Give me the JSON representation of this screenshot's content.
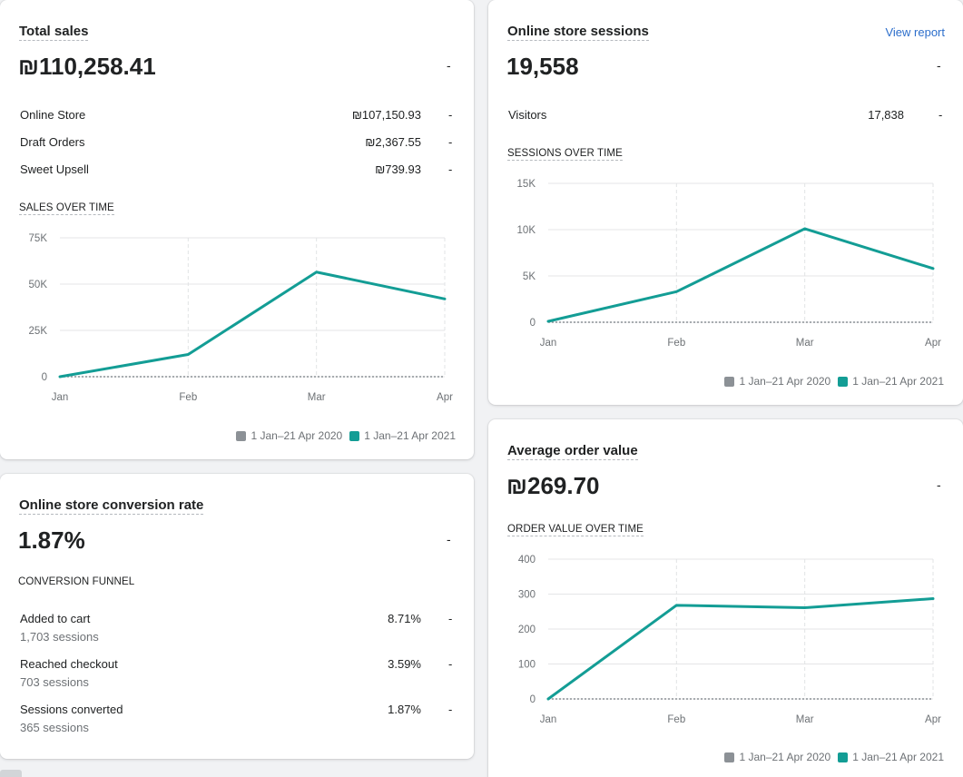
{
  "colors": {
    "current": "#139d95",
    "previous": "#8c9196",
    "link": "#2c6ecb"
  },
  "total_sales": {
    "title": "Total sales",
    "value": "₪110,258.41",
    "change": "-",
    "rows": [
      {
        "label": "Online Store",
        "value": "₪107,150.93",
        "change": "-"
      },
      {
        "label": "Draft Orders",
        "value": "₪2,367.55",
        "change": "-"
      },
      {
        "label": "Sweet Upsell",
        "value": "₪739.93",
        "change": "-"
      }
    ],
    "chart_label": "SALES OVER TIME"
  },
  "sessions": {
    "title": "Online store sessions",
    "view_report": "View report",
    "value": "19,558",
    "change": "-",
    "rows": [
      {
        "label": "Visitors",
        "value": "17,838",
        "change": "-"
      }
    ],
    "chart_label": "SESSIONS OVER TIME"
  },
  "conversion": {
    "title": "Online store conversion rate",
    "value": "1.87%",
    "change": "-",
    "funnel_label": "CONVERSION FUNNEL",
    "rows": [
      {
        "label": "Added to cart",
        "sub": "1,703 sessions",
        "value": "8.71%",
        "change": "-"
      },
      {
        "label": "Reached checkout",
        "sub": "703 sessions",
        "value": "3.59%",
        "change": "-"
      },
      {
        "label": "Sessions converted",
        "sub": "365 sessions",
        "value": "1.87%",
        "change": "-"
      }
    ]
  },
  "aov": {
    "title": "Average order value",
    "value": "₪269.70",
    "change": "-",
    "chart_label": "ORDER VALUE OVER TIME"
  },
  "legend": {
    "previous": "1 Jan–21 Apr 2020",
    "current": "1 Jan–21 Apr 2021"
  },
  "chart_data": [
    {
      "type": "line",
      "title": "SALES OVER TIME",
      "categories": [
        "Jan",
        "Feb",
        "Mar",
        "Apr"
      ],
      "yticks": [
        "0",
        "25K",
        "50K",
        "75K"
      ],
      "ylim": [
        0,
        75000
      ],
      "series": [
        {
          "name": "1 Jan–21 Apr 2020",
          "values": [
            0,
            0,
            0,
            0
          ]
        },
        {
          "name": "1 Jan–21 Apr 2021",
          "values": [
            0,
            12000,
            56500,
            42000
          ]
        }
      ]
    },
    {
      "type": "line",
      "title": "SESSIONS OVER TIME",
      "categories": [
        "Jan",
        "Feb",
        "Mar",
        "Apr"
      ],
      "yticks": [
        "0",
        "5K",
        "10K",
        "15K"
      ],
      "ylim": [
        0,
        15000
      ],
      "series": [
        {
          "name": "1 Jan–21 Apr 2020",
          "values": [
            0,
            0,
            0,
            0
          ]
        },
        {
          "name": "1 Jan–21 Apr 2021",
          "values": [
            100,
            3300,
            10100,
            5800
          ]
        }
      ]
    },
    {
      "type": "line",
      "title": "ORDER VALUE OVER TIME",
      "categories": [
        "Jan",
        "Feb",
        "Mar",
        "Apr"
      ],
      "yticks": [
        "0",
        "100",
        "200",
        "300",
        "400"
      ],
      "ylim": [
        0,
        400
      ],
      "series": [
        {
          "name": "1 Jan–21 Apr 2020",
          "values": [
            0,
            0,
            0,
            0
          ]
        },
        {
          "name": "1 Jan–21 Apr 2021",
          "values": [
            0,
            268,
            261,
            287
          ]
        }
      ]
    }
  ]
}
